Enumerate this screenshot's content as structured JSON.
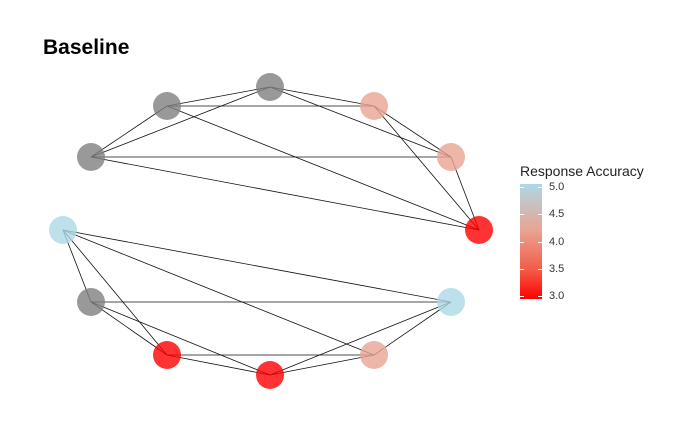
{
  "title": "Baseline",
  "legend": {
    "title": "Response Accuracy",
    "ticks": [
      "5.0",
      "4.5",
      "4.0",
      "3.5",
      "3.0"
    ],
    "tick_values": [
      5.0,
      4.5,
      4.0,
      3.5,
      3.0
    ],
    "range": [
      2.95,
      5.05
    ],
    "colors": {
      "high": "#add8e6",
      "mid": "#e9a493",
      "low": "#ff0000"
    }
  },
  "graph": {
    "components": [
      {
        "nodes": [
          {
            "id": "a1",
            "accuracy": null,
            "color": "#808080"
          },
          {
            "id": "a2",
            "accuracy": null,
            "color": "#808080"
          },
          {
            "id": "a3",
            "accuracy": null,
            "color": "#808080"
          },
          {
            "id": "a4",
            "accuracy": 4.0,
            "color": "#e9a493"
          },
          {
            "id": "a5",
            "accuracy": 4.0,
            "color": "#e9a493"
          },
          {
            "id": "a6",
            "accuracy": 3.0,
            "color": "#ff0000"
          }
        ],
        "edges": [
          [
            "a1",
            "a2"
          ],
          [
            "a1",
            "a3"
          ],
          [
            "a1",
            "a5"
          ],
          [
            "a1",
            "a6"
          ],
          [
            "a2",
            "a3"
          ],
          [
            "a2",
            "a4"
          ],
          [
            "a2",
            "a6"
          ],
          [
            "a3",
            "a4"
          ],
          [
            "a3",
            "a5"
          ],
          [
            "a4",
            "a5"
          ],
          [
            "a4",
            "a6"
          ],
          [
            "a5",
            "a6"
          ]
        ]
      },
      {
        "nodes": [
          {
            "id": "b1",
            "accuracy": 5.0,
            "color": "#add8e6"
          },
          {
            "id": "b2",
            "accuracy": null,
            "color": "#808080"
          },
          {
            "id": "b3",
            "accuracy": 3.0,
            "color": "#ff0000"
          },
          {
            "id": "b4",
            "accuracy": 3.0,
            "color": "#ff0000"
          },
          {
            "id": "b5",
            "accuracy": 4.0,
            "color": "#e9a493"
          },
          {
            "id": "b6",
            "accuracy": 5.0,
            "color": "#add8e6"
          }
        ],
        "edges": [
          [
            "b1",
            "b2"
          ],
          [
            "b1",
            "b3"
          ],
          [
            "b1",
            "b5"
          ],
          [
            "b1",
            "b6"
          ],
          [
            "b2",
            "b3"
          ],
          [
            "b2",
            "b4"
          ],
          [
            "b2",
            "b6"
          ],
          [
            "b3",
            "b4"
          ],
          [
            "b3",
            "b5"
          ],
          [
            "b4",
            "b5"
          ],
          [
            "b4",
            "b6"
          ],
          [
            "b5",
            "b6"
          ]
        ]
      }
    ]
  }
}
